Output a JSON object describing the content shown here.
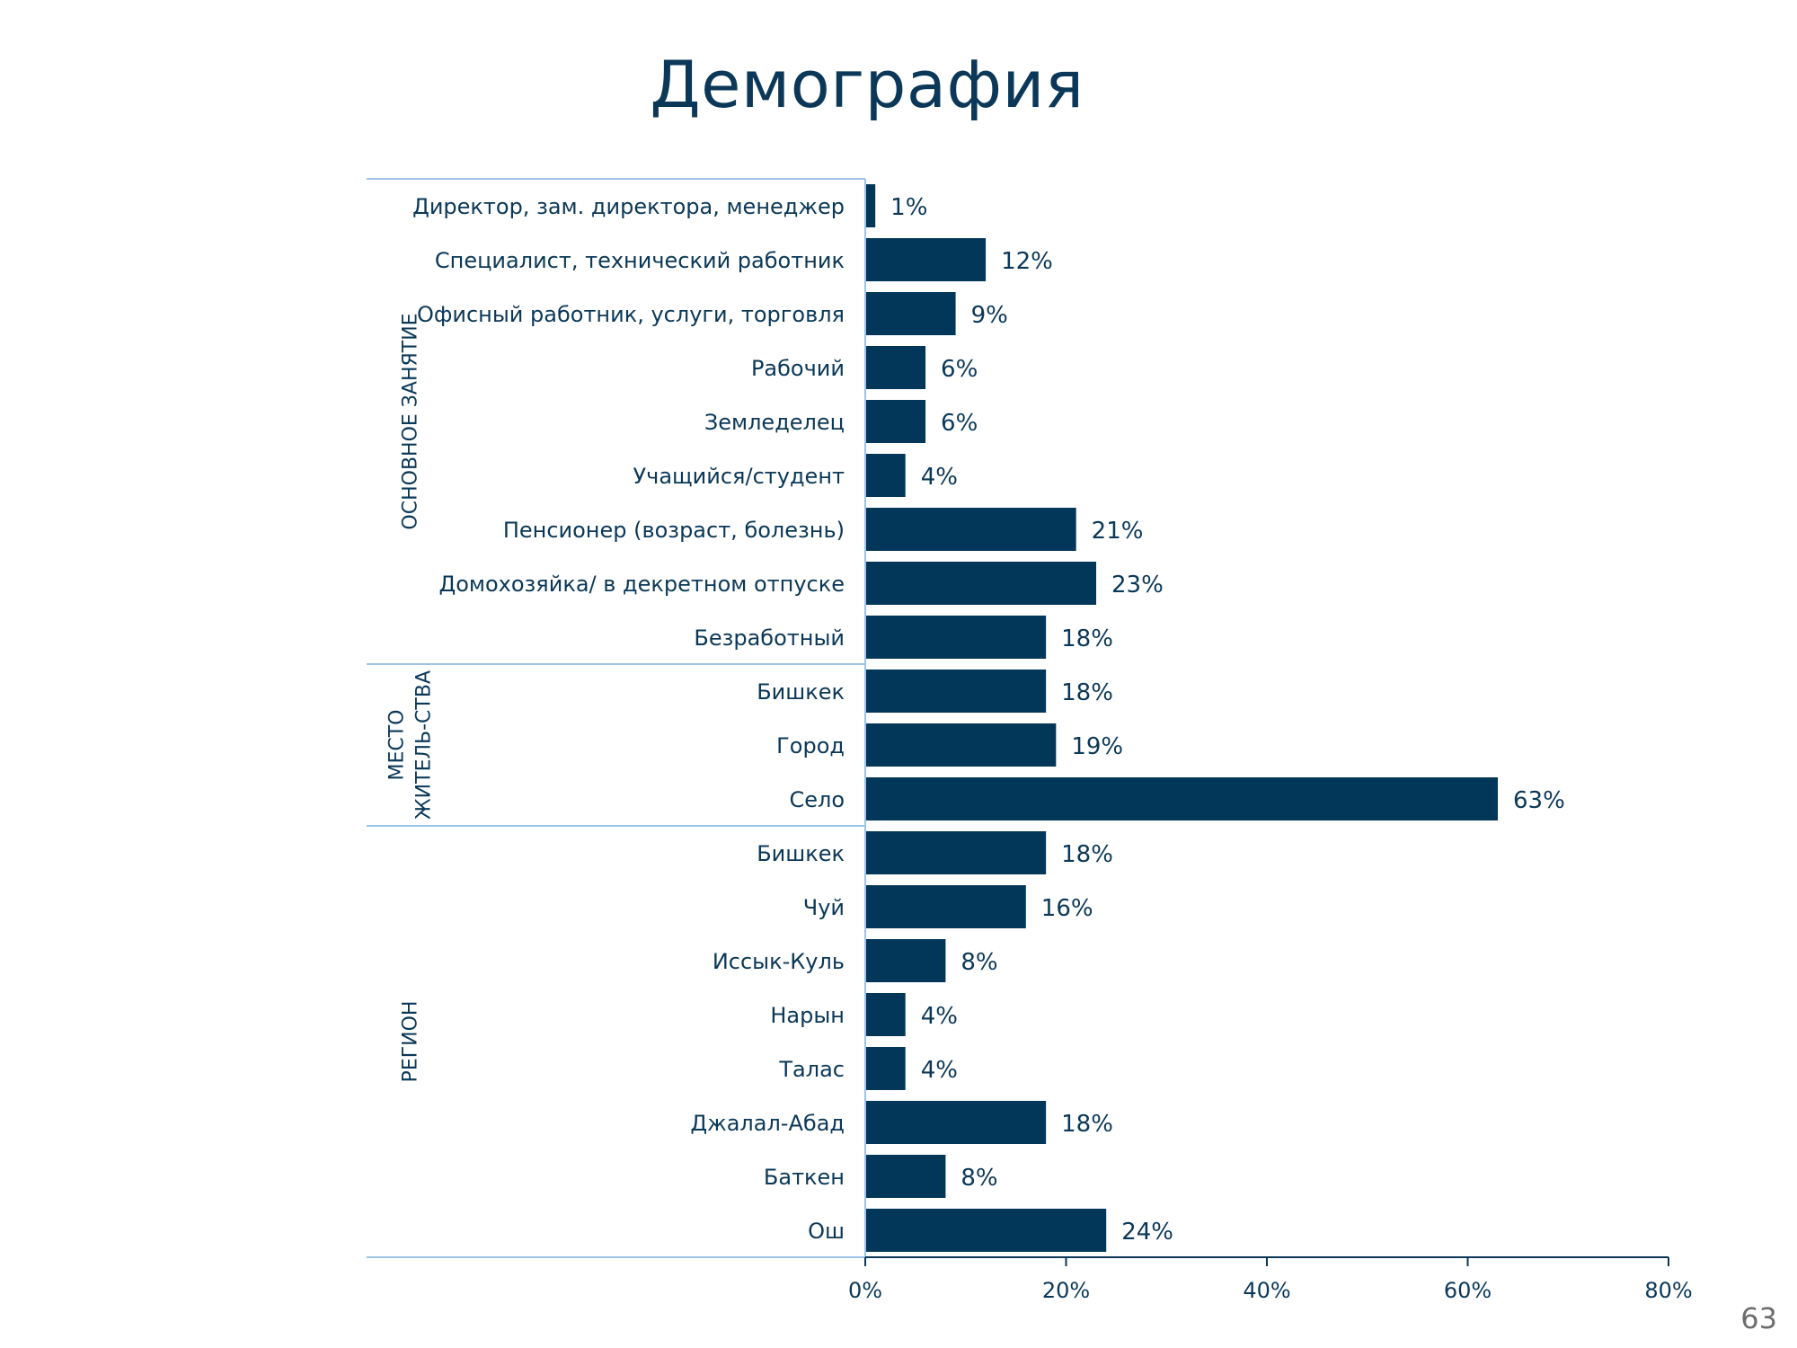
{
  "page_title": "Демография",
  "page_number": "63",
  "colors": {
    "bar": "#03375a",
    "text": "#0b3858",
    "divider": "#9dc3e6",
    "axis": "#0b3858"
  },
  "chart_data": {
    "type": "bar",
    "orientation": "horizontal",
    "title": "Демография",
    "xlabel": "",
    "ylabel": "",
    "xlim": [
      0,
      80
    ],
    "xticks": [
      0,
      20,
      40,
      60,
      80
    ],
    "xtick_labels": [
      "0%",
      "20%",
      "40%",
      "60%",
      "80%"
    ],
    "value_suffix": "%",
    "grid": false,
    "groups": [
      {
        "name": "ОСНОВНОЕ ЗАНЯТИЕ",
        "name_lines": [
          "ОСНОВНОЕ ЗАНЯТИЕ"
        ],
        "categories": [
          "Директор, зам. директора, менеджер",
          "Специалист, технический работник",
          "Офисный работник, услуги, торговля",
          "Рабочий",
          "Земледелец",
          "Учащийся/студент",
          "Пенсионер (возраст, болезнь)",
          "Домохозяйка/ в декретном отпуске",
          "Безработный"
        ],
        "values": [
          1,
          12,
          9,
          6,
          6,
          4,
          21,
          23,
          18
        ]
      },
      {
        "name": "МЕСТО ЖИТЕЛЬ-СТВА",
        "name_lines": [
          "МЕСТО",
          "ЖИТЕЛЬ-СТВА"
        ],
        "categories": [
          "Бишкек",
          "Город",
          "Село"
        ],
        "values": [
          18,
          19,
          63
        ]
      },
      {
        "name": "РЕГИОН",
        "name_lines": [
          "РЕГИОН"
        ],
        "categories": [
          "Бишкек",
          "Чуй",
          "Иссык-Куль",
          "Нарын",
          "Талас",
          "Джалал-Абад",
          "Баткен",
          "Ош"
        ],
        "values": [
          18,
          16,
          8,
          4,
          4,
          18,
          8,
          24
        ]
      }
    ]
  }
}
